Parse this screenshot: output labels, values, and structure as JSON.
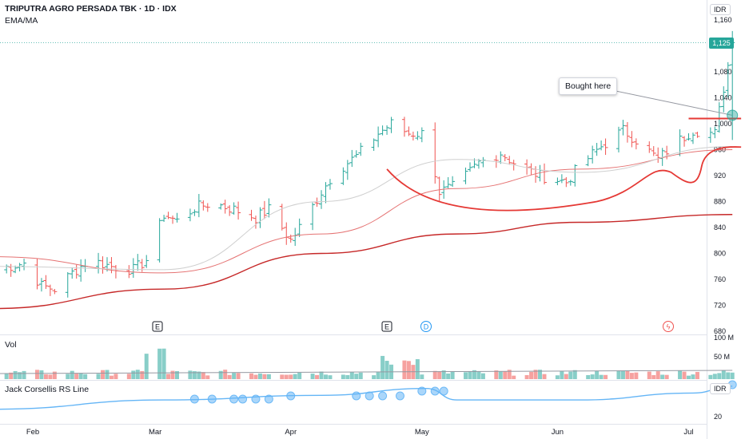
{
  "header": {
    "title": "TRIPUTRA AGRO PERSADA TBK · 1D · IDX",
    "indicator": "EMA/MA"
  },
  "axis": {
    "currency_top": "IDR",
    "currency_bottom": "IDR",
    "price_ticks": [
      "1,160",
      "1,080",
      "1,040",
      "1,000",
      "960",
      "920",
      "880",
      "840",
      "800",
      "760",
      "720",
      "680"
    ],
    "current_price": "1,125",
    "volume_ticks": [
      "100 M",
      "50 M"
    ],
    "rs_tick": "20",
    "months": [
      "Feb",
      "Mar",
      "Apr",
      "May",
      "Jun",
      "Jul"
    ]
  },
  "panes": {
    "volume_label": "Vol",
    "rs_label": "Jack Corsellis RS Line"
  },
  "annotation": {
    "text": "Bought here"
  },
  "events": [
    {
      "label": "E",
      "type": "earnings"
    },
    {
      "label": "E",
      "type": "earnings"
    },
    {
      "label": "D",
      "type": "dividend"
    },
    {
      "label": "ϟ",
      "type": "split"
    }
  ],
  "colors": {
    "up": "#26a69a",
    "down": "#ef5350",
    "ma_long": "#c62828",
    "ma_mid": "#e57373",
    "ma_short": "#cfcfcf",
    "rs_line": "#64b5f6",
    "drawing": "#e53935"
  },
  "chart_data": {
    "type": "candlestick",
    "price_range": [
      680,
      1160
    ],
    "price_anchors": [
      [
        "Jan 23",
        775
      ],
      [
        "Jan 30",
        785
      ],
      [
        "Feb 3",
        750
      ],
      [
        "Feb 6",
        745
      ],
      [
        "Feb 10",
        770
      ],
      [
        "Feb 14",
        790
      ],
      [
        "Feb 19",
        780
      ],
      [
        "Feb 24",
        775
      ],
      [
        "Feb 27",
        790
      ],
      [
        "Mar 3",
        860
      ],
      [
        "Mar 6",
        850
      ],
      [
        "Mar 10",
        870
      ],
      [
        "Mar 14",
        878
      ],
      [
        "Mar 19",
        868
      ],
      [
        "Mar 24",
        855
      ],
      [
        "Mar 27",
        868
      ],
      [
        "Apr 1",
        820
      ],
      [
        "Apr 4",
        850
      ],
      [
        "Apr 8",
        895
      ],
      [
        "Apr 11",
        925
      ],
      [
        "Apr 16",
        950
      ],
      [
        "Apr 21",
        985
      ],
      [
        "Apr 24",
        1000
      ],
      [
        "Apr 28",
        985
      ],
      [
        "May 2",
        985
      ],
      [
        "May 5",
        895
      ],
      [
        "May 9",
        905
      ],
      [
        "May 14",
        940
      ],
      [
        "May 19",
        955
      ],
      [
        "May 23",
        935
      ],
      [
        "May 28",
        920
      ],
      [
        "Jun 3",
        910
      ],
      [
        "Jun 6",
        935
      ],
      [
        "Jun 11",
        965
      ],
      [
        "Jun 16",
        990
      ],
      [
        "Jun 19",
        975
      ],
      [
        "Jun 24",
        945
      ],
      [
        "Jun 27",
        965
      ],
      [
        "Jul 2",
        990
      ],
      [
        "Jul 7",
        985
      ],
      [
        "Jul 11",
        1125
      ]
    ],
    "moving_averages": [
      {
        "name": "",
        "values": [
          [
            "Jan 23",
            715
          ],
          [
            "Mar 3",
            745
          ],
          [
            "Apr 8",
            800
          ],
          [
            "May 9",
            830
          ],
          [
            "Jun 6",
            848
          ],
          [
            "Jul 11",
            860
          ]
        ]
      },
      {
        "name": "",
        "values": [
          [
            "Jan 23",
            795
          ],
          [
            "Mar 3",
            770
          ],
          [
            "Apr 8",
            830
          ],
          [
            "May 9",
            900
          ],
          [
            "Jun 6",
            930
          ],
          [
            "Jul 11",
            960
          ]
        ]
      },
      {
        "name": "",
        "values": [
          [
            "Jan 23",
            780
          ],
          [
            "Mar 3",
            775
          ],
          [
            "Apr 8",
            880
          ],
          [
            "May 9",
            945
          ],
          [
            "Jun 6",
            925
          ],
          [
            "Jul 11",
            965
          ]
        ]
      }
    ],
    "volume_range": [
      0,
      100
    ],
    "rs_line": [
      [
        "Jan 23",
        18
      ],
      [
        "Mar 3",
        22
      ],
      [
        "Apr 8",
        24
      ],
      [
        "May 2",
        27
      ],
      [
        "May 9",
        22
      ],
      [
        "Jun 6",
        22
      ],
      [
        "Jul 2",
        25
      ],
      [
        "Jul 11",
        28
      ]
    ]
  }
}
